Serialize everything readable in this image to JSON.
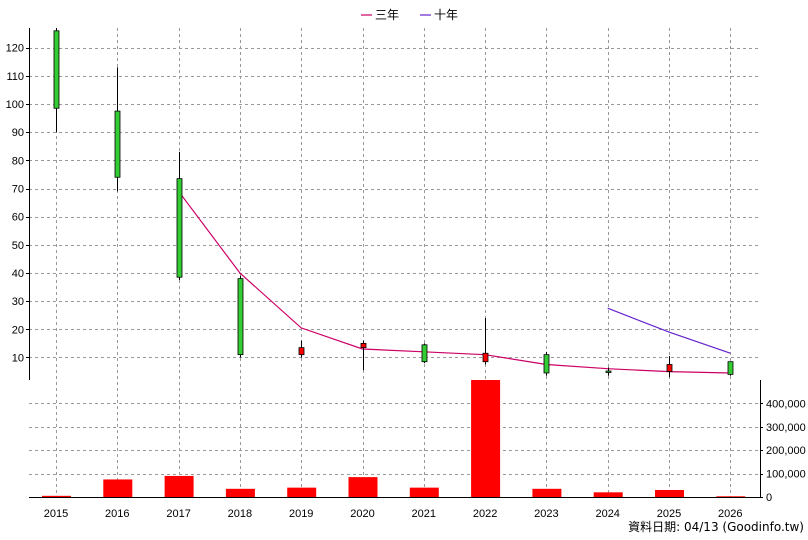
{
  "chart_data": {
    "type": "candlestick",
    "categories": [
      "2015",
      "2016",
      "2017",
      "2018",
      "2019",
      "2020",
      "2021",
      "2022",
      "2023",
      "2024",
      "2025",
      "2026"
    ],
    "price_axis": {
      "ticks": [
        10,
        20,
        30,
        40,
        50,
        60,
        70,
        80,
        90,
        100,
        110,
        120
      ],
      "range": [
        2,
        127
      ]
    },
    "volume_axis": {
      "ticks": [
        0,
        100000,
        200000,
        300000,
        400000
      ],
      "tick_labels": [
        "0",
        "100,000",
        "200,000",
        "300,000",
        "400,000"
      ],
      "range": [
        0,
        500000
      ]
    },
    "candles": [
      {
        "year": "2015",
        "open": 98.5,
        "close": 126,
        "high": 127,
        "low": 90,
        "up": true
      },
      {
        "year": "2016",
        "open": 74,
        "close": 97.5,
        "high": 113,
        "low": 69,
        "up": true
      },
      {
        "year": "2017",
        "open": 38.5,
        "close": 73.5,
        "high": 83,
        "low": 37.5,
        "up": true
      },
      {
        "year": "2018",
        "open": 11,
        "close": 38,
        "high": 39,
        "low": 10,
        "up": true
      },
      {
        "year": "2019",
        "open": 13.5,
        "close": 11,
        "high": 16,
        "low": 10,
        "up": false
      },
      {
        "year": "2020",
        "open": 15,
        "close": 13.5,
        "high": 16,
        "low": 5.5,
        "up": false
      },
      {
        "year": "2021",
        "open": 8.5,
        "close": 14.5,
        "high": 15,
        "low": 8,
        "up": true
      },
      {
        "year": "2022",
        "open": 11.5,
        "close": 8.5,
        "high": 24,
        "low": 7.5,
        "up": false
      },
      {
        "year": "2023",
        "open": 4.5,
        "close": 11,
        "high": 12,
        "low": 3.5,
        "up": true
      },
      {
        "year": "2024",
        "open": 5.2,
        "close": 5.2,
        "high": 6.5,
        "low": 3.5,
        "up": true
      },
      {
        "year": "2025",
        "open": 7.5,
        "close": 5,
        "high": 10.5,
        "low": 3,
        "up": false
      },
      {
        "year": "2026",
        "open": 4,
        "close": 8.5,
        "high": 8.5,
        "low": 3.5,
        "up": true
      }
    ],
    "volume": [
      5000,
      75000,
      90000,
      35000,
      40000,
      85000,
      40000,
      500000,
      35000,
      20000,
      30000,
      3000
    ],
    "series": [
      {
        "name": "三年",
        "color": "#cc0066",
        "x": [
          "2017",
          "2018",
          "2019",
          "2020",
          "2021",
          "2022",
          "2023",
          "2024",
          "2025",
          "2026"
        ],
        "values": [
          69,
          40,
          20.5,
          13,
          12,
          11,
          7.5,
          6,
          5,
          4.5
        ]
      },
      {
        "name": "十年",
        "color": "#6622cc",
        "x": [
          "2024",
          "2025",
          "2026"
        ],
        "values": [
          27.5,
          19,
          11.5
        ]
      }
    ],
    "colors": {
      "up": "#33cc33",
      "down": "#ff0000",
      "volume": "#ff0000",
      "grid": "#999999"
    },
    "grid": true,
    "legend_position": "top-center"
  },
  "footer": "資料日期: 04/13 (Goodinfo.tw)"
}
